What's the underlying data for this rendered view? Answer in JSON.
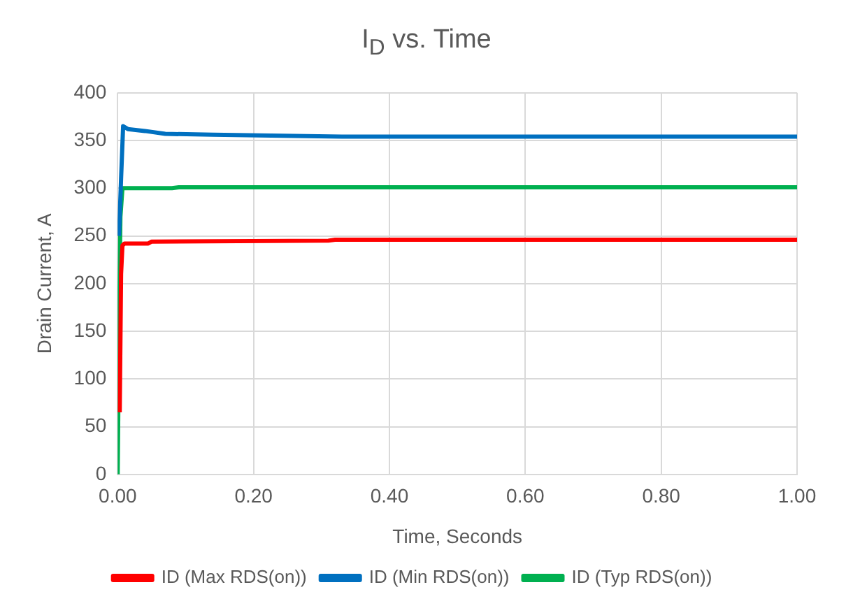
{
  "chart_data": {
    "type": "line",
    "title": "I$_{D}$ vs. Time",
    "xlabel": "Time, Seconds",
    "ylabel": "Drain Current, A",
    "xlim": [
      0,
      1
    ],
    "xticks": [
      {
        "value": 0,
        "label": "0.00"
      },
      {
        "value": 0.2,
        "label": "0.20"
      },
      {
        "value": 0.4,
        "label": "0.40"
      },
      {
        "value": 0.6,
        "label": "0.60"
      },
      {
        "value": 0.8,
        "label": "0.80"
      },
      {
        "value": 1,
        "label": "1.00"
      }
    ],
    "ylim": [
      0,
      400
    ],
    "yticks": [
      0,
      50,
      100,
      150,
      200,
      250,
      300,
      350,
      400
    ],
    "grid": true,
    "legend": "bottom",
    "marker": "none",
    "series": [
      {
        "name": "ID (Max RDS(on))",
        "color": "#ff0000",
        "x": [
          0.003,
          0.005,
          0.007,
          0.01,
          0.045,
          0.05,
          0.31,
          0.32,
          1
        ],
        "values": [
          65,
          210,
          240,
          242,
          242,
          244,
          245,
          246,
          246
        ]
      },
      {
        "name": "ID (Min RDS(on))",
        "color": "#0070c0",
        "x": [
          0.002,
          0.005,
          0.008,
          0.015,
          0.04,
          0.07,
          0.14,
          0.33,
          1
        ],
        "values": [
          250,
          310,
          365,
          362,
          360,
          357,
          356,
          354,
          354
        ]
      },
      {
        "name": "ID (Typ RDS(on))",
        "color": "#00b050",
        "x": [
          0,
          0.002,
          0.004,
          0.007,
          0.08,
          0.09,
          1
        ],
        "values": [
          0,
          150,
          270,
          300,
          300,
          301,
          301
        ]
      }
    ]
  }
}
